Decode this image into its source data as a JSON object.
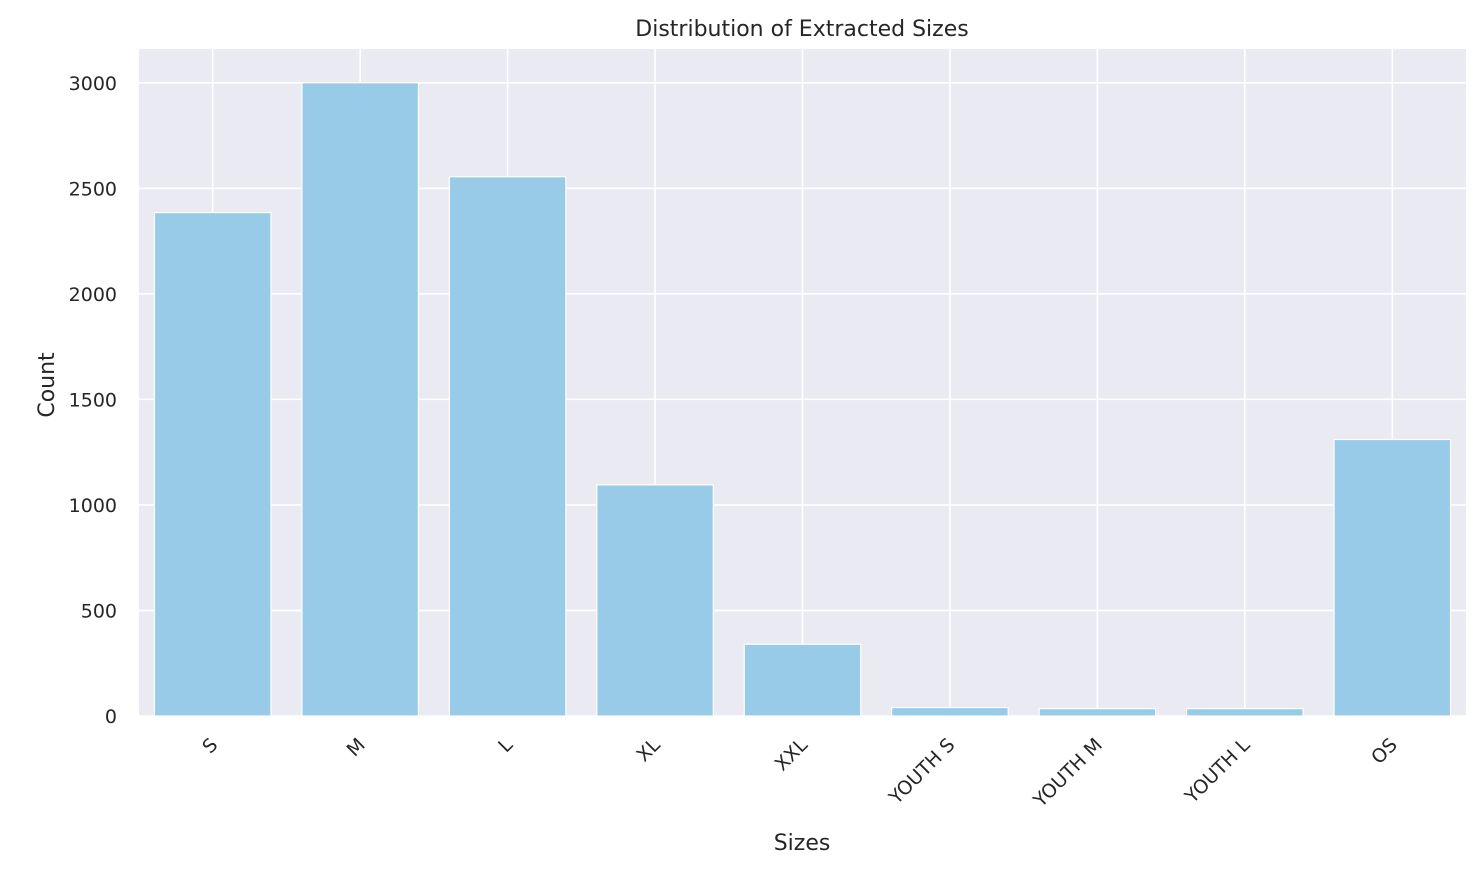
{
  "chart_data": {
    "type": "bar",
    "title": "Distribution of Extracted Sizes",
    "xlabel": "Sizes",
    "ylabel": "Count",
    "categories": [
      "S",
      "M",
      "L",
      "XL",
      "XXL",
      "YOUTH S",
      "YOUTH M",
      "YOUTH L",
      "OS"
    ],
    "values": [
      2385,
      3000,
      2555,
      1095,
      340,
      40,
      35,
      35,
      1310
    ],
    "ylim": [
      0,
      3160
    ],
    "yticks": [
      0,
      500,
      1000,
      1500,
      2000,
      2500,
      3000
    ],
    "grid": true,
    "legend": "none",
    "colors": {
      "bar": "#97cbe8",
      "plot_background": "#eaeaf2",
      "grid": "#ffffff",
      "text": "#262626"
    }
  }
}
